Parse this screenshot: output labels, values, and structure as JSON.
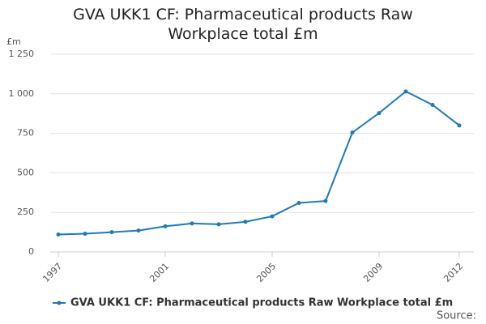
{
  "chart_data": {
    "type": "line",
    "title": "GVA UKK1 CF: Pharmaceutical products Raw Workplace total £m",
    "y_unit": "£m",
    "x": [
      1997,
      1998,
      1999,
      2000,
      2001,
      2002,
      2003,
      2004,
      2005,
      2006,
      2007,
      2008,
      2009,
      2010,
      2011,
      2012
    ],
    "series": [
      {
        "name": "GVA UKK1 CF: Pharmaceutical products Raw Workplace total £m",
        "color": "#1f7bb6",
        "values": [
          110,
          115,
          125,
          135,
          162,
          180,
          175,
          190,
          225,
          310,
          322,
          755,
          878,
          1015,
          930,
          800
        ]
      }
    ],
    "xlim": [
      1997,
      2012
    ],
    "xticks": [
      1997,
      2001,
      2005,
      2009,
      2012
    ],
    "ylim": [
      0,
      1250
    ],
    "yticks": [
      0,
      250,
      500,
      750,
      {
        "value": 1000,
        "label": "1 000"
      },
      {
        "value": 1250,
        "label": "1 250"
      }
    ],
    "grid": true,
    "source": "Source:"
  }
}
